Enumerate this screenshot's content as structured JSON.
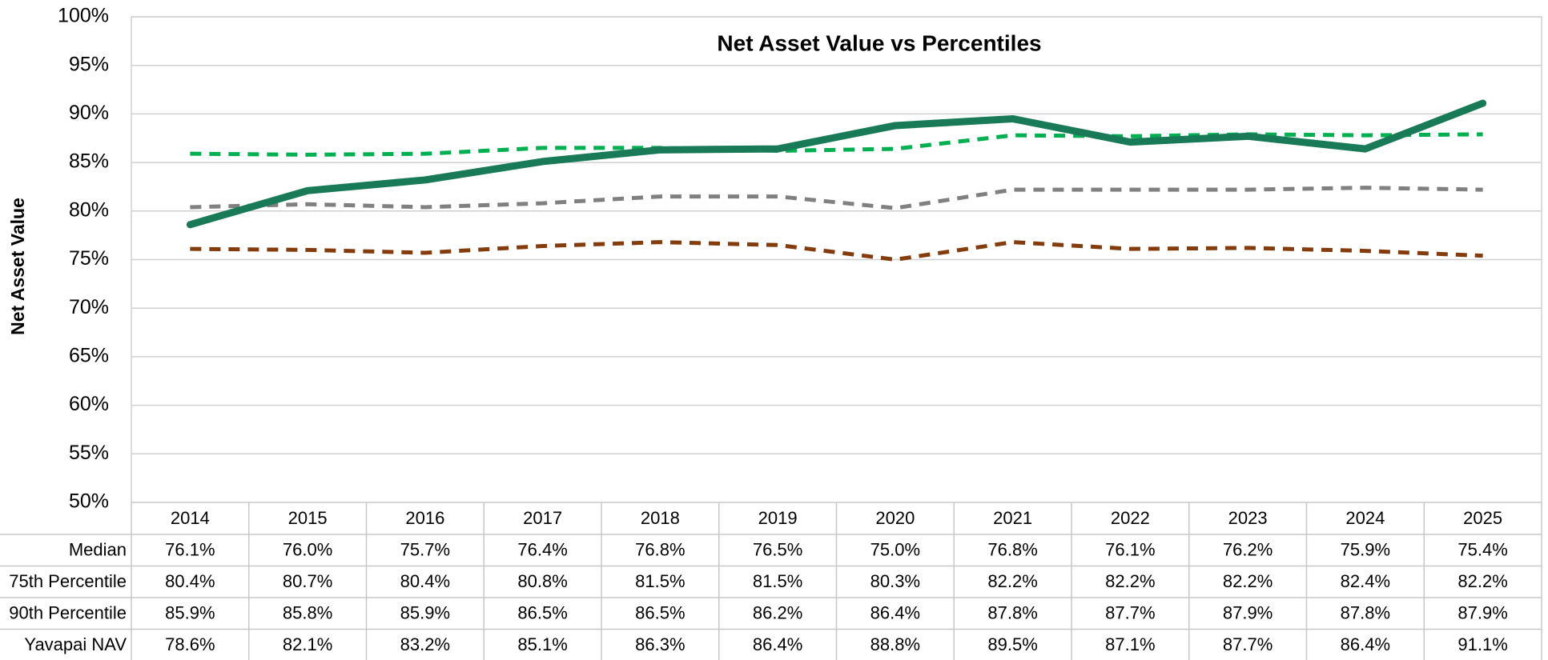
{
  "chart_data": {
    "type": "line",
    "title": "Net Asset Value vs Percentiles",
    "y_label": "Net Asset Value",
    "categories": [
      "2014",
      "2015",
      "2016",
      "2017",
      "2018",
      "2019",
      "2020",
      "2021",
      "2022",
      "2023",
      "2024",
      "2025"
    ],
    "series": [
      {
        "name": "Median",
        "color": "#843c0c",
        "dashed": true,
        "values": [
          76.1,
          76.0,
          75.7,
          76.4,
          76.8,
          76.5,
          75.0,
          76.8,
          76.1,
          76.2,
          75.9,
          75.4
        ],
        "value_labels": [
          "76.1%",
          "76.0%",
          "75.7%",
          "76.4%",
          "76.8%",
          "76.5%",
          "75.0%",
          "76.8%",
          "76.1%",
          "76.2%",
          "75.9%",
          "75.4%"
        ]
      },
      {
        "name": "75th Percentile",
        "color": "#808080",
        "dashed": true,
        "values": [
          80.4,
          80.7,
          80.4,
          80.8,
          81.5,
          81.5,
          80.3,
          82.2,
          82.2,
          82.2,
          82.4,
          82.2
        ],
        "value_labels": [
          "80.4%",
          "80.7%",
          "80.4%",
          "80.8%",
          "81.5%",
          "81.5%",
          "80.3%",
          "82.2%",
          "82.2%",
          "82.2%",
          "82.4%",
          "82.2%"
        ]
      },
      {
        "name": "90th Percentile",
        "color": "#00b050",
        "dashed": true,
        "values": [
          85.9,
          85.8,
          85.9,
          86.5,
          86.5,
          86.2,
          86.4,
          87.8,
          87.7,
          87.9,
          87.8,
          87.9
        ],
        "value_labels": [
          "85.9%",
          "85.8%",
          "85.9%",
          "86.5%",
          "86.5%",
          "86.2%",
          "86.4%",
          "87.8%",
          "87.7%",
          "87.9%",
          "87.8%",
          "87.9%"
        ]
      },
      {
        "name": "Yavapai NAV",
        "color": "#187a56",
        "dashed": false,
        "values": [
          78.6,
          82.1,
          83.2,
          85.1,
          86.3,
          86.4,
          88.8,
          89.5,
          87.1,
          87.7,
          86.4,
          91.1
        ],
        "value_labels": [
          "78.6%",
          "82.1%",
          "83.2%",
          "85.1%",
          "86.3%",
          "86.4%",
          "88.8%",
          "89.5%",
          "87.1%",
          "87.7%",
          "86.4%",
          "91.1%"
        ]
      }
    ],
    "ylim": [
      50,
      100
    ],
    "yticks": [
      {
        "value": 50,
        "label": "50%"
      },
      {
        "value": 55,
        "label": "55%"
      },
      {
        "value": 60,
        "label": "60%"
      },
      {
        "value": 65,
        "label": "65%"
      },
      {
        "value": 70,
        "label": "70%"
      },
      {
        "value": 75,
        "label": "75%"
      },
      {
        "value": 80,
        "label": "80%"
      },
      {
        "value": 85,
        "label": "85%"
      },
      {
        "value": 90,
        "label": "90%"
      },
      {
        "value": 95,
        "label": "95%"
      },
      {
        "value": 100,
        "label": "100%"
      }
    ],
    "grid": true
  }
}
